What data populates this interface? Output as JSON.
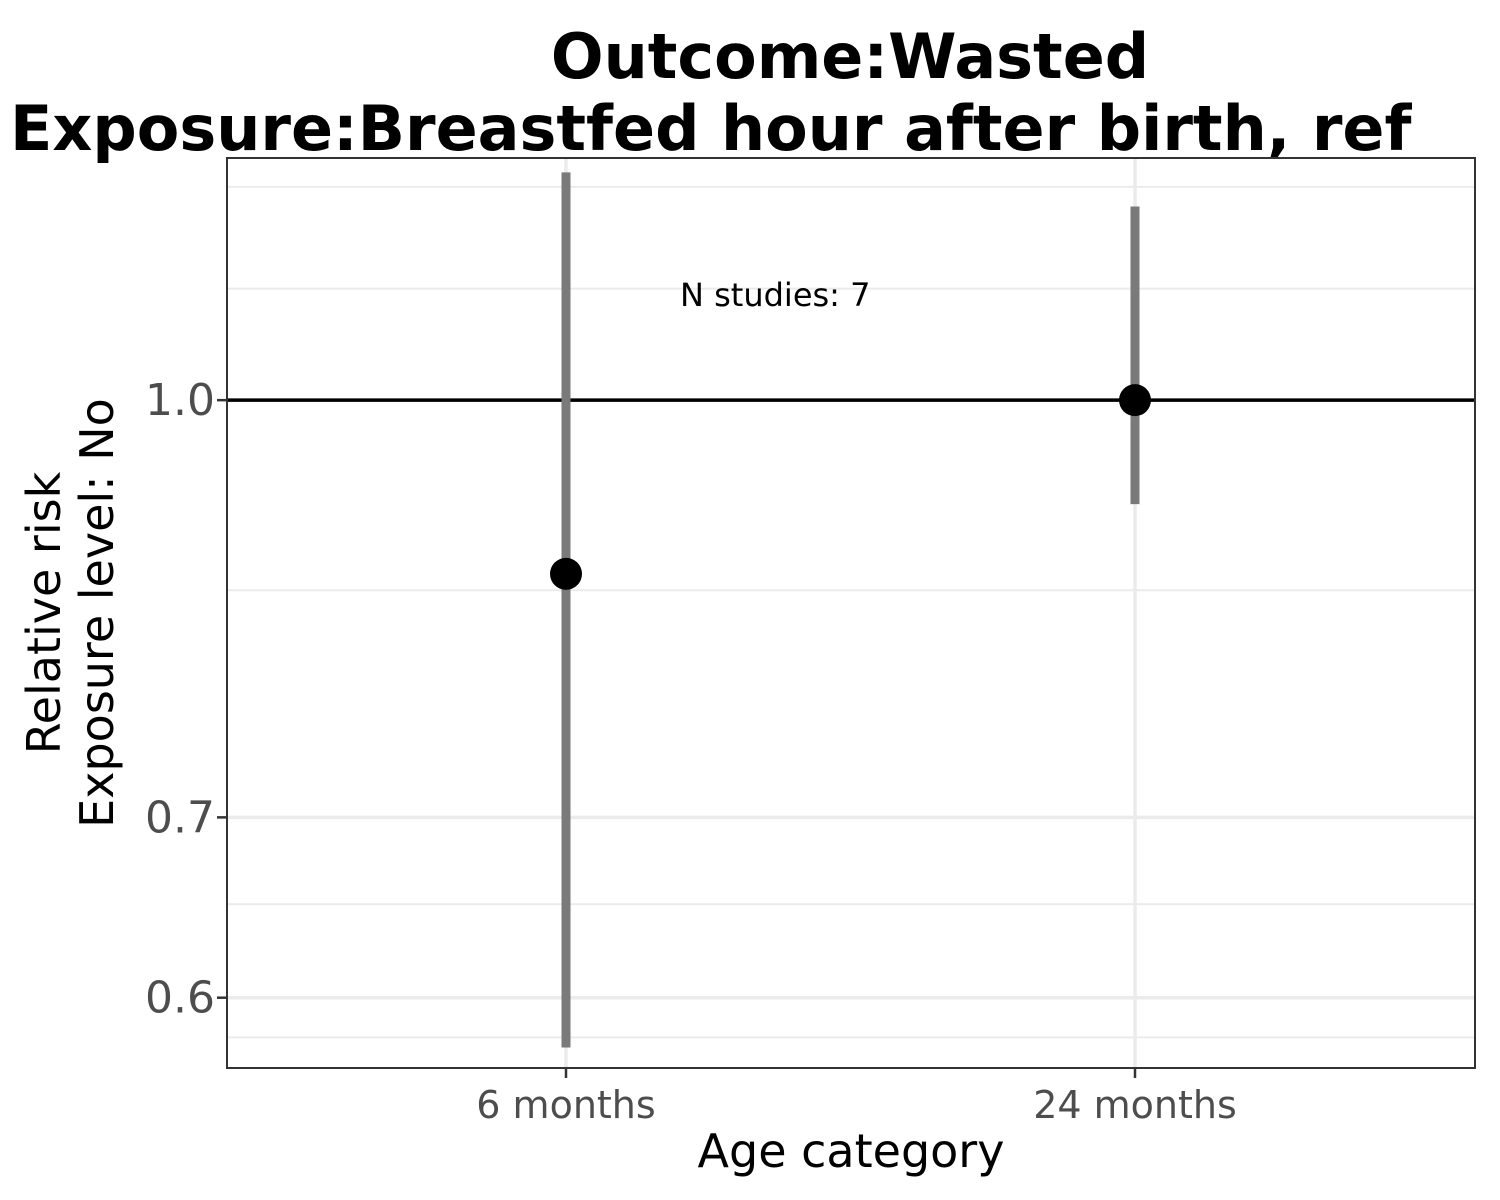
{
  "chart_data": {
    "type": "scatter",
    "title_line1": "Outcome:Wasted",
    "title_line2": "Exposure:Breastfed hour after birth, ref",
    "xlabel": "Age category",
    "ylabel_line1": "Relative risk",
    "ylabel_line2": "Exposure level: No",
    "y_scale": "log",
    "ylim": [
      0.565,
      1.23
    ],
    "yticks": [
      0.6,
      0.7,
      1.0
    ],
    "ytick_labels": [
      "0.6",
      "0.7",
      "1.0"
    ],
    "y_minor_gridlines": [
      0.58,
      0.65,
      0.85,
      1.1,
      1.2
    ],
    "categories": [
      "6 months",
      "24 months"
    ],
    "points": [
      {
        "x": "6 months",
        "estimate": 0.862,
        "ci_lower": 0.575,
        "ci_upper": 1.215
      },
      {
        "x": "24 months",
        "estimate": 1.0,
        "ci_lower": 0.915,
        "ci_upper": 1.18
      }
    ],
    "reference_line": 1.0,
    "annotation": "N studies: 7",
    "grid": true,
    "legend": "none",
    "colors": {
      "point": "#000000",
      "errorbar": "#7a7a7a",
      "reference": "#000000",
      "grid": "#ebebeb",
      "panel_border": "#333333"
    }
  }
}
